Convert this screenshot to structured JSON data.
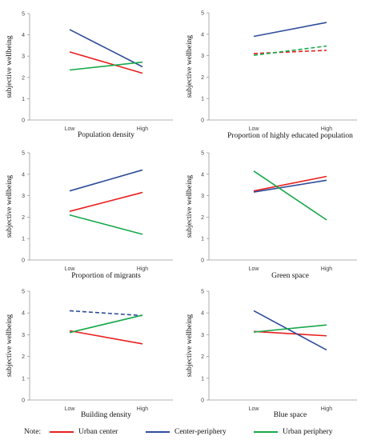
{
  "figure": {
    "legend": {
      "note": "Note:",
      "entries": [
        {
          "name": "Urban center",
          "color": "#e8201f"
        },
        {
          "name": "Center-periphery",
          "color": "#2f4d9a"
        },
        {
          "name": "Urban periphery",
          "color": "#17a84a"
        }
      ]
    }
  },
  "chart_data": [
    {
      "type": "line",
      "xlabel": "Population density",
      "ylabel": "subjective wellbeing",
      "categories": [
        "Low",
        "High"
      ],
      "ylim": [
        0,
        5
      ],
      "yticks": [
        0,
        1,
        2,
        3,
        4,
        5
      ],
      "series": [
        {
          "name": "Urban center",
          "color": "#e8201f",
          "values": [
            3.2,
            2.2
          ],
          "dashed": false
        },
        {
          "name": "Center-periphery",
          "color": "#2f4d9a",
          "values": [
            4.25,
            2.5
          ],
          "dashed": false
        },
        {
          "name": "Urban periphery",
          "color": "#17a84a",
          "values": [
            2.35,
            2.72
          ],
          "dashed": false
        }
      ]
    },
    {
      "type": "line",
      "xlabel": "Proportion of highly educated population",
      "ylabel": "subjective wellbeing",
      "categories": [
        "Low",
        "High"
      ],
      "ylim": [
        0,
        5
      ],
      "yticks": [
        0,
        1,
        2,
        3,
        4,
        5
      ],
      "series": [
        {
          "name": "Urban center",
          "color": "#e8201f",
          "values": [
            3.1,
            3.25
          ],
          "dashed": true
        },
        {
          "name": "Center-periphery",
          "color": "#2f4d9a",
          "values": [
            3.9,
            4.55
          ],
          "dashed": false
        },
        {
          "name": "Urban periphery",
          "color": "#17a84a",
          "values": [
            3.02,
            3.45
          ],
          "dashed": true
        }
      ]
    },
    {
      "type": "line",
      "xlabel": "Proportion of migrants",
      "ylabel": "subjective wellbeing",
      "categories": [
        "Low",
        "High"
      ],
      "ylim": [
        0,
        5
      ],
      "yticks": [
        0,
        1,
        2,
        3,
        4,
        5
      ],
      "series": [
        {
          "name": "Urban center",
          "color": "#e8201f",
          "values": [
            2.27,
            3.15
          ],
          "dashed": false
        },
        {
          "name": "Center-periphery",
          "color": "#2f4d9a",
          "values": [
            3.22,
            4.2
          ],
          "dashed": false
        },
        {
          "name": "Urban periphery",
          "color": "#17a84a",
          "values": [
            2.1,
            1.2
          ],
          "dashed": false
        }
      ]
    },
    {
      "type": "line",
      "xlabel": "Green space",
      "ylabel": "subjective wellbeing",
      "categories": [
        "Low",
        "High"
      ],
      "ylim": [
        0,
        5
      ],
      "yticks": [
        0,
        1,
        2,
        3,
        4,
        5
      ],
      "series": [
        {
          "name": "Urban center",
          "color": "#e8201f",
          "values": [
            3.22,
            3.9
          ],
          "dashed": false
        },
        {
          "name": "Center-periphery",
          "color": "#2f4d9a",
          "values": [
            3.17,
            3.72
          ],
          "dashed": false
        },
        {
          "name": "Urban periphery",
          "color": "#17a84a",
          "values": [
            4.15,
            1.87
          ],
          "dashed": false
        }
      ]
    },
    {
      "type": "line",
      "xlabel": "Building density",
      "ylabel": "subjective wellbeing",
      "categories": [
        "Low",
        "High"
      ],
      "ylim": [
        0,
        5
      ],
      "yticks": [
        0,
        1,
        2,
        3,
        4,
        5
      ],
      "series": [
        {
          "name": "Urban center",
          "color": "#e8201f",
          "values": [
            3.18,
            2.58
          ],
          "dashed": false
        },
        {
          "name": "Center-periphery",
          "color": "#2f4d9a",
          "values": [
            4.1,
            3.88
          ],
          "dashed": true
        },
        {
          "name": "Urban periphery",
          "color": "#17a84a",
          "values": [
            3.1,
            3.9
          ],
          "dashed": false
        }
      ]
    },
    {
      "type": "line",
      "xlabel": "Blue space",
      "ylabel": "subjective wellbeing",
      "categories": [
        "Low",
        "High"
      ],
      "ylim": [
        0,
        5
      ],
      "yticks": [
        0,
        1,
        2,
        3,
        4,
        5
      ],
      "series": [
        {
          "name": "Urban center",
          "color": "#e8201f",
          "values": [
            3.15,
            2.95
          ],
          "dashed": false
        },
        {
          "name": "Center-periphery",
          "color": "#2f4d9a",
          "values": [
            4.1,
            2.3
          ],
          "dashed": false
        },
        {
          "name": "Urban periphery",
          "color": "#17a84a",
          "values": [
            3.12,
            3.45
          ],
          "dashed": false
        }
      ]
    }
  ]
}
